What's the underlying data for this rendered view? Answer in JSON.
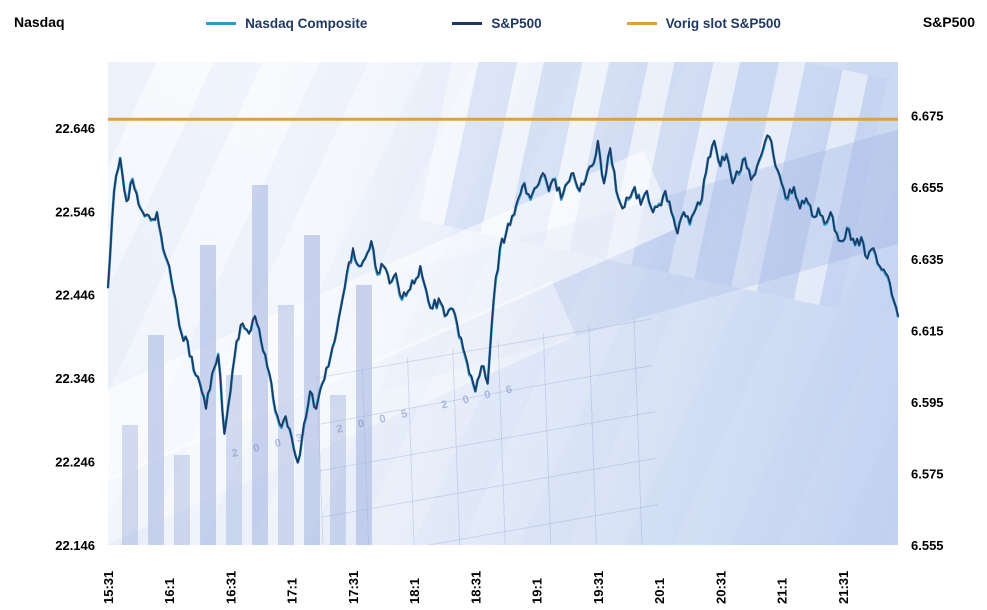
{
  "header": {
    "left_axis_title": "Nasdaq",
    "right_axis_title": "S&P500"
  },
  "legend": {
    "items": [
      {
        "label": "Nasdaq Composite",
        "color": "#2e9bcb"
      },
      {
        "label": "S&P500",
        "color": "#1f3864"
      },
      {
        "label": "Vorig slot S&P500",
        "color": "#e59d38"
      }
    ]
  },
  "watermark": {
    "years_text": "2003 2005 2006"
  },
  "chart_data": {
    "type": "line",
    "title": "",
    "legend_position": "top",
    "grid": false,
    "x": {
      "tick_labels": [
        "15:31",
        "16:1",
        "16:31",
        "17:1",
        "17:31",
        "18:1",
        "18:31",
        "19:1",
        "19:31",
        "20:1",
        "20:31",
        "21:1",
        "21:31"
      ],
      "points_per_tick": 10,
      "minutes_per_point": 3,
      "start": "15:31"
    },
    "y_left": {
      "axis_title": "Nasdaq",
      "tick_labels": [
        "22.646",
        "22.546",
        "22.446",
        "22.346",
        "22.246",
        "22.146"
      ],
      "tick_values": [
        22646,
        22546,
        22446,
        22346,
        22246,
        22146
      ],
      "range": [
        22146,
        22725
      ]
    },
    "y_right": {
      "axis_title": "S&P500",
      "tick_labels": [
        "6.675",
        "6.655",
        "6.635",
        "6.615",
        "6.595",
        "6.575",
        "6.555"
      ],
      "tick_values": [
        6675,
        6655,
        6635,
        6615,
        6595,
        6575,
        6555
      ],
      "range": [
        6555,
        6690
      ]
    },
    "series": [
      {
        "name": "Nasdaq Composite",
        "axis": "left",
        "color": "#2e9bcb",
        "stroke_width": 2.6,
        "values": [
          22455,
          22570,
          22610,
          22560,
          22585,
          22555,
          22540,
          22535,
          22545,
          22500,
          22480,
          22440,
          22400,
          22390,
          22355,
          22340,
          22310,
          22350,
          22375,
          22280,
          22330,
          22390,
          22410,
          22400,
          22420,
          22390,
          22360,
          22320,
          22290,
          22300,
          22275,
          22245,
          22290,
          22330,
          22310,
          22340,
          22360,
          22390,
          22430,
          22470,
          22500,
          22480,
          22490,
          22510,
          22470,
          22480,
          22460,
          22470,
          22440,
          22450,
          22460,
          22480,
          22450,
          22430,
          22440,
          22420,
          22430,
          22410,
          22380,
          22350,
          22330,
          22360,
          22340,
          22440,
          22500,
          22520,
          22540,
          22560,
          22580,
          22560,
          22575,
          22590,
          22570,
          22585,
          22560,
          22580,
          22590,
          22570,
          22585,
          22600,
          22630,
          22580,
          22620,
          22570,
          22550,
          22560,
          22575,
          22555,
          22570,
          22545,
          22555,
          22570,
          22545,
          22520,
          22545,
          22530,
          22550,
          22560,
          22610,
          22630,
          22600,
          22615,
          22580,
          22590,
          22610,
          22585,
          22600,
          22620,
          22635,
          22600,
          22580,
          22560,
          22575,
          22550,
          22560,
          22540,
          22550,
          22530,
          22545,
          22520,
          22510,
          22525,
          22505,
          22515,
          22490,
          22500,
          22480,
          22470,
          22445,
          22420
        ]
      },
      {
        "name": "S&P500",
        "axis": "right",
        "color": "#1f3864",
        "stroke_width": 1.7,
        "values": [
          6627,
          6654,
          6663,
          6651,
          6657,
          6650,
          6647,
          6646,
          6648,
          6638,
          6633,
          6624,
          6614,
          6612,
          6604,
          6600,
          6593,
          6603,
          6608,
          6586,
          6598,
          6612,
          6617,
          6614,
          6619,
          6612,
          6605,
          6596,
          6589,
          6591,
          6585,
          6578,
          6589,
          6598,
          6593,
          6600,
          6605,
          6612,
          6621,
          6631,
          6638,
          6633,
          6635,
          6640,
          6631,
          6633,
          6628,
          6631,
          6624,
          6626,
          6628,
          6633,
          6626,
          6621,
          6624,
          6619,
          6621,
          6617,
          6610,
          6603,
          6598,
          6605,
          6600,
          6624,
          6638,
          6642,
          6647,
          6652,
          6656,
          6652,
          6655,
          6659,
          6654,
          6657,
          6652,
          6656,
          6659,
          6654,
          6657,
          6661,
          6668,
          6656,
          6666,
          6654,
          6649,
          6652,
          6655,
          6650,
          6654,
          6648,
          6650,
          6654,
          6648,
          6642,
          6648,
          6645,
          6649,
          6652,
          6663,
          6668,
          6661,
          6664,
          6656,
          6659,
          6663,
          6657,
          6661,
          6666,
          6669,
          6661,
          6656,
          6652,
          6655,
          6649,
          6652,
          6647,
          6649,
          6645,
          6648,
          6642,
          6640,
          6643,
          6639,
          6641,
          6635,
          6638,
          6633,
          6631,
          6625,
          6619
        ]
      },
      {
        "name": "Vorig slot S&P500",
        "axis": "right",
        "color": "#e59d38",
        "stroke_width": 3,
        "constant": 6674
      }
    ]
  }
}
